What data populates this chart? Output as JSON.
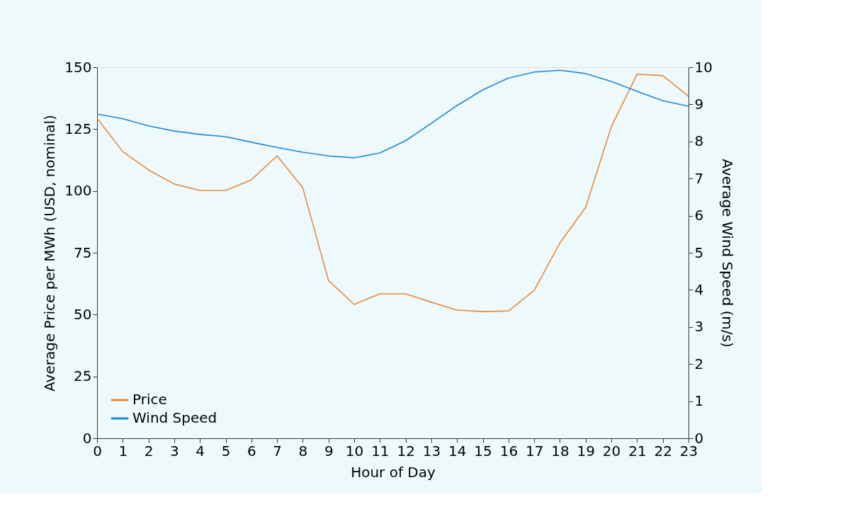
{
  "chart_data": {
    "type": "line",
    "xlabel": "Hour of Day",
    "ylabel": "Average Price per MWh (USD, nominal)",
    "y2label": "Average Wind Speed (m/s)",
    "x": [
      0,
      1,
      2,
      3,
      4,
      5,
      6,
      7,
      8,
      9,
      10,
      11,
      12,
      13,
      14,
      15,
      16,
      17,
      18,
      19,
      20,
      21,
      22,
      23
    ],
    "series": [
      {
        "name": "Price",
        "color": "#e8893a",
        "values": [
          129.4,
          115.9,
          108.5,
          102.8,
          100.2,
          100.2,
          104.5,
          114.2,
          101.3,
          63.8,
          54.1,
          58.4,
          58.4,
          55.0,
          51.8,
          51.2,
          51.5,
          59.8,
          79.0,
          93.3,
          126.0,
          147.2,
          146.6,
          138.3
        ]
      },
      {
        "name": "Wind Speed",
        "color": "#1f88d8",
        "axis": "y2",
        "values": [
          8.74,
          8.61,
          8.42,
          8.28,
          8.19,
          8.13,
          7.98,
          7.84,
          7.71,
          7.61,
          7.56,
          7.69,
          8.02,
          8.49,
          8.97,
          9.39,
          9.71,
          9.87,
          9.92,
          9.83,
          9.62,
          9.35,
          9.1,
          8.95
        ]
      }
    ],
    "xlim": [
      0,
      23
    ],
    "xticks": [
      0,
      1,
      2,
      3,
      4,
      5,
      6,
      7,
      8,
      9,
      10,
      11,
      12,
      13,
      14,
      15,
      16,
      17,
      18,
      19,
      20,
      21,
      22,
      23
    ],
    "ylim": [
      0,
      150
    ],
    "yticks": [
      0,
      25,
      50,
      75,
      100,
      125,
      150
    ],
    "y2lim": [
      0,
      10
    ],
    "y2ticks": [
      0,
      1,
      2,
      3,
      4,
      5,
      6,
      7,
      8,
      9,
      10
    ],
    "grid": false,
    "legend": "bottom left"
  }
}
